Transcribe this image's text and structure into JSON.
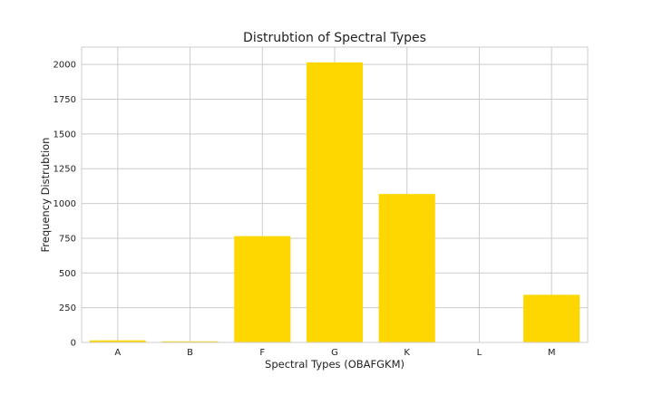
{
  "chart_data": {
    "type": "bar",
    "title": "Distrubtion of Spectral Types",
    "xlabel": "Spectral Types (OBAFGKM)",
    "ylabel": "Frequency Distrubtion",
    "categories": [
      "A",
      "B",
      "F",
      "G",
      "K",
      "L",
      "M"
    ],
    "values": [
      15,
      8,
      765,
      2015,
      1068,
      0,
      343
    ],
    "ylim": [
      0,
      2125
    ],
    "yticks": [
      0,
      250,
      500,
      750,
      1000,
      1250,
      1500,
      1750,
      2000
    ],
    "grid": true,
    "bar_color": "#FFD700",
    "grid_color": "#cccccc"
  }
}
